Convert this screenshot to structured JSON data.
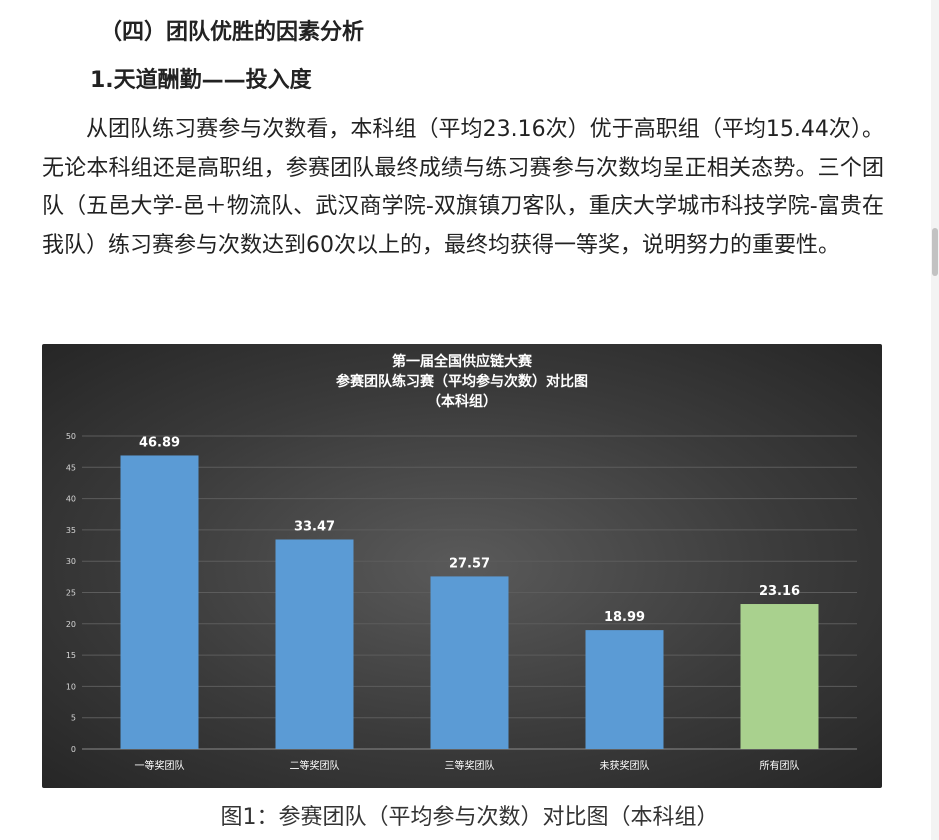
{
  "article": {
    "section_heading": "（四）团队优胜的因素分析",
    "sub_heading": "1.天道酬勤——投入度",
    "paragraph": "从团队练习赛参与次数看，本科组（平均23.16次）优于高职组（平均15.44次）。无论本科组还是高职组，参赛团队最终成绩与练习赛参与次数均呈正相关态势。三个团队（五邑大学-邑＋物流队、武汉商学院-双旗镇刀客队，重庆大学城市科技学院-富贵在我队）练习赛参与次数达到60次以上的，最终均获得一等奖，说明努力的重要性。",
    "caption": "图1：参赛团队（平均参与次数）对比图（本科组）"
  },
  "chart_data": {
    "type": "bar",
    "title_lines": [
      "第一届全国供应链大赛",
      "参赛团队练习赛（平均参与次数）对比图",
      "（本科组）"
    ],
    "categories": [
      "一等奖团队",
      "二等奖团队",
      "三等奖团队",
      "未获奖团队",
      "所有团队"
    ],
    "values": [
      46.89,
      33.47,
      27.57,
      18.99,
      23.16
    ],
    "value_labels": [
      "46.89",
      "33.47",
      "27.57",
      "18.99",
      "23.16"
    ],
    "bar_colors": [
      "#5b9bd5",
      "#5b9bd5",
      "#5b9bd5",
      "#5b9bd5",
      "#a9d18e"
    ],
    "yticks": [
      0,
      5,
      10,
      15,
      20,
      25,
      30,
      35,
      40,
      45,
      50
    ],
    "ylim": [
      0,
      50
    ],
    "grid": true,
    "legend": "none"
  }
}
